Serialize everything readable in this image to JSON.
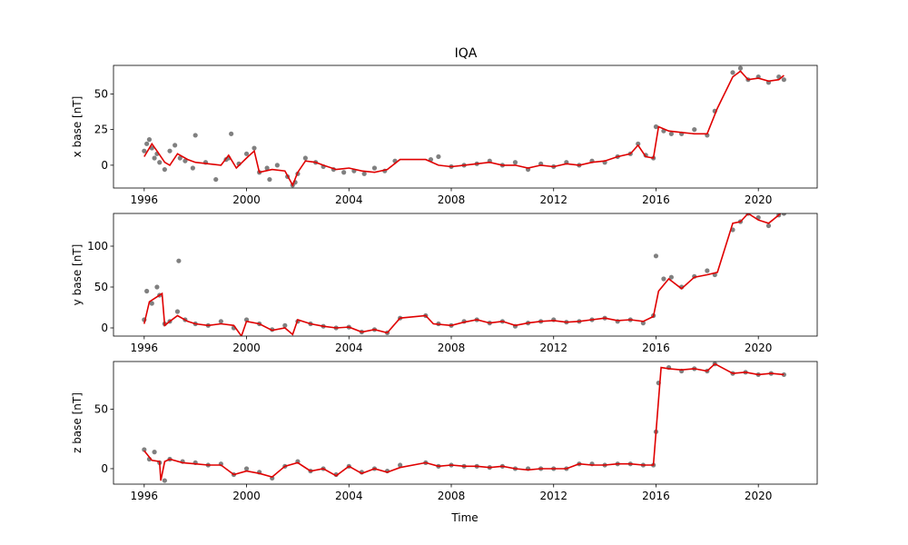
{
  "title": "IQA",
  "xlabel": "Time",
  "colors": {
    "points": "#808080",
    "line": "#e00000",
    "axes": "#000000"
  },
  "chart_data": [
    {
      "type": "line",
      "ylabel": "x base [nT]",
      "xlim": [
        1994.8,
        2022.3
      ],
      "ylim": [
        -16,
        70
      ],
      "xticks": [
        1996,
        2000,
        2004,
        2008,
        2012,
        2016,
        2020
      ],
      "yticks": [
        0,
        25,
        50
      ],
      "series": [
        {
          "kind": "points",
          "x": [
            1996.0,
            1996.1,
            1996.2,
            1996.3,
            1996.4,
            1996.5,
            1996.6,
            1996.8,
            1997.0,
            1997.2,
            1997.4,
            1997.6,
            1998.0,
            1998.4,
            1998.8,
            1999.2,
            1999.4,
            1999.7,
            2000.0,
            2000.3,
            2000.5,
            2000.8,
            2001.2,
            2001.6,
            2001.8,
            2002.0,
            2002.3,
            2002.7,
            2003.0,
            2003.4,
            2003.8,
            2004.2,
            2004.6,
            2005.0,
            2005.4,
            2005.8,
            2007.2,
            2007.5,
            2008.0,
            2008.5,
            2009.0,
            2009.5,
            2010.0,
            2010.5,
            2011.0,
            2011.5,
            2012.0,
            2012.5,
            2013.0,
            2013.5,
            2014.0,
            2014.5,
            2015.0,
            2015.3,
            2015.6,
            2015.9,
            2016.0,
            2016.3,
            2016.6,
            2017.0,
            2017.5,
            2018.0,
            2018.3,
            2019.0,
            2019.3,
            2019.6,
            2020.0,
            2020.4,
            2020.8,
            2021.0,
            1997.9,
            1999.3,
            2000.9,
            2001.9
          ],
          "y": [
            10,
            15,
            18,
            12,
            5,
            8,
            2,
            -3,
            10,
            14,
            5,
            3,
            21,
            2,
            -10,
            4,
            22,
            1,
            8,
            12,
            -5,
            -2,
            0,
            -8,
            -14,
            -6,
            5,
            2,
            -1,
            -3,
            -5,
            -4,
            -6,
            -2,
            -4,
            3,
            4,
            6,
            -1,
            0,
            1,
            3,
            0,
            2,
            -3,
            1,
            -1,
            2,
            0,
            3,
            2,
            6,
            8,
            15,
            7,
            5,
            27,
            24,
            22,
            22,
            25,
            21,
            38,
            65,
            68,
            60,
            62,
            58,
            62,
            60,
            -2,
            5,
            -10,
            -12
          ]
        },
        {
          "kind": "line",
          "x": [
            1996.0,
            1996.3,
            1996.5,
            1996.8,
            1997.0,
            1997.3,
            1997.7,
            1998.0,
            1998.5,
            1999.0,
            1999.3,
            1999.6,
            2000.0,
            2000.3,
            2000.5,
            2001.0,
            2001.5,
            2001.8,
            2002.0,
            2002.3,
            2002.7,
            2003.0,
            2003.5,
            2004.0,
            2004.5,
            2005.0,
            2005.5,
            2006.0,
            2007.0,
            2007.5,
            2008.0,
            2008.5,
            2009.0,
            2009.5,
            2010.0,
            2010.5,
            2011.0,
            2011.5,
            2012.0,
            2012.5,
            2013.0,
            2013.5,
            2014.0,
            2014.5,
            2015.0,
            2015.3,
            2015.6,
            2015.9,
            2016.1,
            2016.5,
            2017.0,
            2017.5,
            2018.0,
            2018.4,
            2019.0,
            2019.3,
            2019.6,
            2020.0,
            2020.4,
            2020.8,
            2021.0
          ],
          "y": [
            6,
            15,
            10,
            2,
            0,
            8,
            4,
            2,
            1,
            0,
            7,
            -2,
            5,
            10,
            -5,
            -3,
            -4,
            -14,
            -5,
            3,
            2,
            0,
            -3,
            -2,
            -4,
            -5,
            -3,
            4,
            4,
            0,
            -1,
            0,
            1,
            2,
            0,
            0,
            -2,
            0,
            -1,
            1,
            0,
            2,
            3,
            6,
            8,
            14,
            6,
            5,
            27,
            24,
            23,
            22,
            22,
            40,
            62,
            66,
            60,
            61,
            59,
            60,
            63
          ]
        }
      ]
    },
    {
      "type": "line",
      "ylabel": "y base [nT]",
      "xlim": [
        1994.8,
        2022.3
      ],
      "ylim": [
        -10,
        140
      ],
      "xticks": [
        1996,
        2000,
        2004,
        2008,
        2012,
        2016,
        2020
      ],
      "yticks": [
        0,
        50,
        100
      ],
      "series": [
        {
          "kind": "points",
          "x": [
            1996.0,
            1996.1,
            1996.3,
            1996.5,
            1996.6,
            1996.8,
            1997.0,
            1997.3,
            1997.6,
            1998.0,
            1998.5,
            1999.0,
            1999.5,
            2000.0,
            2000.5,
            2001.0,
            2001.5,
            2002.0,
            2002.5,
            2003.0,
            2003.5,
            2004.0,
            2004.5,
            2005.0,
            2005.5,
            2006.0,
            2007.0,
            2007.5,
            2008.0,
            2008.5,
            2009.0,
            2009.5,
            2010.0,
            2010.5,
            2011.0,
            2011.5,
            2012.0,
            2012.5,
            2013.0,
            2013.5,
            2014.0,
            2014.5,
            2015.0,
            2015.5,
            2015.9,
            2016.0,
            2016.3,
            2016.6,
            2017.0,
            2017.5,
            2018.0,
            2018.3,
            2019.0,
            2019.3,
            2019.6,
            2020.0,
            2020.4,
            2020.8,
            2021.0,
            1997.35
          ],
          "y": [
            10,
            45,
            30,
            50,
            40,
            5,
            8,
            20,
            10,
            5,
            3,
            8,
            0,
            10,
            5,
            -2,
            3,
            8,
            5,
            2,
            0,
            1,
            -5,
            -2,
            -6,
            12,
            15,
            5,
            3,
            8,
            10,
            6,
            8,
            2,
            6,
            8,
            10,
            7,
            8,
            10,
            12,
            8,
            10,
            6,
            15,
            88,
            60,
            62,
            50,
            63,
            70,
            65,
            120,
            130,
            140,
            135,
            125,
            138,
            140,
            82
          ]
        },
        {
          "kind": "line",
          "x": [
            1996.0,
            1996.2,
            1996.5,
            1996.7,
            1996.8,
            1997.0,
            1997.3,
            1997.7,
            1998.0,
            1998.5,
            1999.0,
            1999.5,
            1999.8,
            2000.0,
            2000.5,
            2001.0,
            2001.5,
            2001.8,
            2002.0,
            2002.5,
            2003.0,
            2003.5,
            2004.0,
            2004.5,
            2005.0,
            2005.5,
            2006.0,
            2007.0,
            2007.3,
            2008.0,
            2008.5,
            2009.0,
            2009.5,
            2010.0,
            2010.5,
            2011.0,
            2011.5,
            2012.0,
            2012.5,
            2013.0,
            2013.5,
            2014.0,
            2014.5,
            2015.0,
            2015.5,
            2015.9,
            2016.1,
            2016.5,
            2017.0,
            2017.5,
            2018.0,
            2018.4,
            2019.0,
            2019.3,
            2019.6,
            2020.0,
            2020.4,
            2020.8,
            2021.0
          ],
          "y": [
            5,
            32,
            38,
            42,
            3,
            8,
            15,
            8,
            5,
            3,
            5,
            3,
            -10,
            8,
            5,
            -3,
            0,
            -8,
            10,
            5,
            2,
            0,
            1,
            -5,
            -2,
            -6,
            12,
            15,
            5,
            3,
            7,
            10,
            6,
            8,
            3,
            6,
            8,
            9,
            7,
            8,
            10,
            12,
            9,
            10,
            8,
            14,
            45,
            60,
            48,
            62,
            65,
            68,
            128,
            130,
            140,
            132,
            128,
            138,
            145
          ]
        }
      ]
    },
    {
      "type": "line",
      "ylabel": "z base [nT]",
      "xlim": [
        1994.8,
        2022.3
      ],
      "ylim": [
        -13,
        90
      ],
      "xticks": [
        1996,
        2000,
        2004,
        2008,
        2012,
        2016,
        2020
      ],
      "yticks": [
        0,
        50
      ],
      "series": [
        {
          "kind": "points",
          "x": [
            1996.0,
            1996.2,
            1996.4,
            1996.6,
            1996.8,
            1997.0,
            1997.5,
            1998.0,
            1998.5,
            1999.0,
            1999.5,
            2000.0,
            2000.5,
            2001.0,
            2001.5,
            2002.0,
            2002.5,
            2003.0,
            2003.5,
            2004.0,
            2004.5,
            2005.0,
            2005.5,
            2006.0,
            2007.0,
            2007.5,
            2008.0,
            2008.5,
            2009.0,
            2009.5,
            2010.0,
            2010.5,
            2011.0,
            2011.5,
            2012.0,
            2012.5,
            2013.0,
            2013.5,
            2014.0,
            2014.5,
            2015.0,
            2015.5,
            2015.9,
            2016.0,
            2016.1,
            2016.5,
            2017.0,
            2017.5,
            2018.0,
            2018.3,
            2019.0,
            2019.5,
            2020.0,
            2020.5,
            2021.0
          ],
          "y": [
            16,
            8,
            14,
            5,
            -10,
            8,
            6,
            5,
            3,
            4,
            -5,
            0,
            -3,
            -8,
            2,
            6,
            -2,
            0,
            -5,
            2,
            -3,
            0,
            -2,
            3,
            5,
            2,
            3,
            2,
            2,
            1,
            2,
            0,
            0,
            0,
            0,
            0,
            4,
            4,
            3,
            4,
            4,
            3,
            3,
            31,
            72,
            85,
            82,
            84,
            82,
            88,
            80,
            81,
            79,
            80,
            79
          ]
        },
        {
          "kind": "line",
          "x": [
            1996.0,
            1996.3,
            1996.6,
            1996.65,
            1996.8,
            1997.0,
            1997.5,
            1998.0,
            1998.5,
            1999.0,
            1999.5,
            2000.0,
            2000.5,
            2001.0,
            2001.5,
            2002.0,
            2002.5,
            2003.0,
            2003.5,
            2004.0,
            2004.5,
            2005.0,
            2005.5,
            2006.0,
            2007.0,
            2007.5,
            2008.0,
            2008.5,
            2009.0,
            2009.5,
            2010.0,
            2010.5,
            2011.0,
            2011.5,
            2012.0,
            2012.5,
            2013.0,
            2013.5,
            2014.0,
            2014.5,
            2015.0,
            2015.5,
            2015.9,
            2016.2,
            2016.5,
            2017.0,
            2017.5,
            2018.0,
            2018.3,
            2019.0,
            2019.5,
            2020.0,
            2020.5,
            2021.0
          ],
          "y": [
            15,
            7,
            6,
            -10,
            6,
            8,
            5,
            4,
            3,
            3,
            -5,
            -2,
            -4,
            -7,
            2,
            5,
            -2,
            0,
            -6,
            2,
            -4,
            0,
            -3,
            1,
            5,
            2,
            3,
            2,
            2,
            1,
            2,
            0,
            -1,
            0,
            0,
            0,
            4,
            3,
            3,
            4,
            4,
            3,
            3,
            85,
            84,
            83,
            84,
            82,
            88,
            80,
            81,
            79,
            80,
            79
          ]
        }
      ]
    }
  ]
}
